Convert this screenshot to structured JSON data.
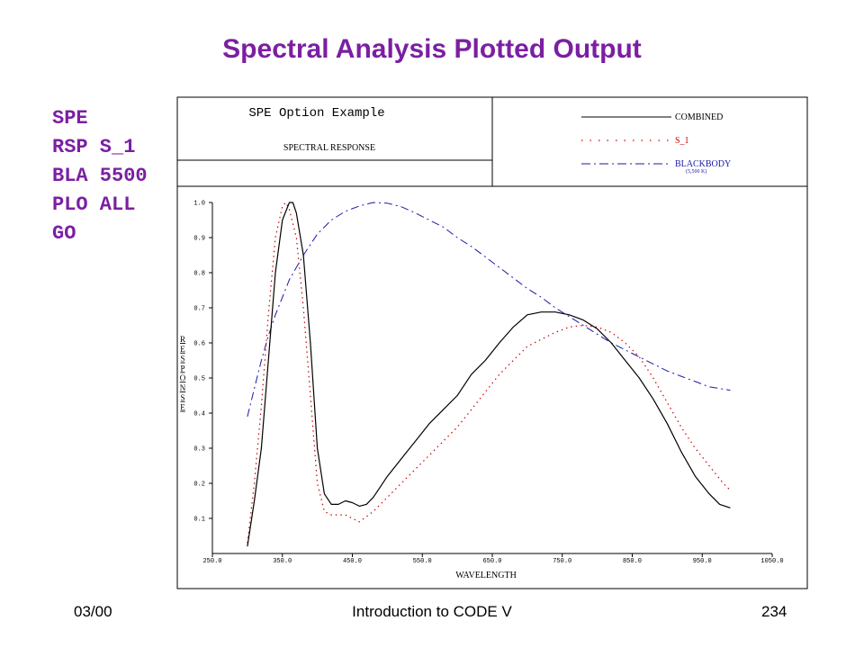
{
  "slide": {
    "title": "Spectral Analysis Plotted Output",
    "commands": [
      "SPE",
      "RSP S_1",
      "BLA 5500",
      "PLO ALL",
      "GO"
    ],
    "footer_left": "03/00",
    "footer_center": "Introduction to CODE V",
    "footer_right": "234"
  },
  "colors": {
    "title": "#7b1fa2",
    "combined": "#000000",
    "s1": "#cc0000",
    "blackbody": "#1a1aaa"
  },
  "chart_data": {
    "type": "line",
    "header_title": "SPE Option Example",
    "header_subtitle": "SPECTRAL RESPONSE",
    "xlabel": "WAVELENGTH",
    "ylabel": "RESPONSE",
    "xlim": [
      250,
      1050
    ],
    "ylim": [
      0,
      1.0
    ],
    "x_ticks": [
      250,
      350,
      450,
      550,
      650,
      750,
      850,
      950,
      1050
    ],
    "x_tick_labels": [
      "250.0",
      "350.0",
      "450.0",
      "550.0",
      "650.0",
      "750.0",
      "850.0",
      "950.0",
      "1050.0"
    ],
    "y_ticks": [
      0.1,
      0.2,
      0.3,
      0.4,
      0.5,
      0.6,
      0.7,
      0.8,
      0.9,
      1.0
    ],
    "y_tick_labels": [
      "0.1",
      "0.2",
      "0.3",
      "0.4",
      "0.5",
      "0.6",
      "0.7",
      "0.8",
      "0.9",
      "1.0"
    ],
    "grid": false,
    "legend_position": "top-right",
    "series": [
      {
        "name": "COMBINED",
        "style": "solid",
        "points": [
          [
            300,
            0.02
          ],
          [
            310,
            0.15
          ],
          [
            320,
            0.3
          ],
          [
            330,
            0.55
          ],
          [
            340,
            0.8
          ],
          [
            350,
            0.95
          ],
          [
            360,
            1.0
          ],
          [
            365,
            1.0
          ],
          [
            370,
            0.97
          ],
          [
            380,
            0.85
          ],
          [
            390,
            0.6
          ],
          [
            400,
            0.3
          ],
          [
            410,
            0.17
          ],
          [
            420,
            0.14
          ],
          [
            430,
            0.14
          ],
          [
            440,
            0.15
          ],
          [
            450,
            0.145
          ],
          [
            460,
            0.135
          ],
          [
            470,
            0.14
          ],
          [
            480,
            0.16
          ],
          [
            490,
            0.19
          ],
          [
            500,
            0.22
          ],
          [
            520,
            0.27
          ],
          [
            540,
            0.32
          ],
          [
            560,
            0.37
          ],
          [
            580,
            0.41
          ],
          [
            600,
            0.45
          ],
          [
            620,
            0.51
          ],
          [
            640,
            0.55
          ],
          [
            660,
            0.6
          ],
          [
            680,
            0.645
          ],
          [
            700,
            0.68
          ],
          [
            720,
            0.688
          ],
          [
            740,
            0.688
          ],
          [
            760,
            0.68
          ],
          [
            780,
            0.665
          ],
          [
            800,
            0.64
          ],
          [
            820,
            0.6
          ],
          [
            840,
            0.55
          ],
          [
            860,
            0.5
          ],
          [
            880,
            0.44
          ],
          [
            900,
            0.37
          ],
          [
            920,
            0.29
          ],
          [
            940,
            0.22
          ],
          [
            960,
            0.17
          ],
          [
            975,
            0.14
          ],
          [
            990,
            0.13
          ]
        ]
      },
      {
        "name": "S_1",
        "style": "dotted",
        "points": [
          [
            300,
            0.03
          ],
          [
            310,
            0.2
          ],
          [
            320,
            0.42
          ],
          [
            330,
            0.68
          ],
          [
            340,
            0.9
          ],
          [
            350,
            0.99
          ],
          [
            355,
            1.0
          ],
          [
            360,
            0.98
          ],
          [
            370,
            0.9
          ],
          [
            380,
            0.7
          ],
          [
            390,
            0.45
          ],
          [
            400,
            0.2
          ],
          [
            410,
            0.12
          ],
          [
            420,
            0.11
          ],
          [
            440,
            0.11
          ],
          [
            460,
            0.09
          ],
          [
            480,
            0.12
          ],
          [
            500,
            0.16
          ],
          [
            520,
            0.2
          ],
          [
            540,
            0.24
          ],
          [
            560,
            0.28
          ],
          [
            580,
            0.32
          ],
          [
            600,
            0.36
          ],
          [
            620,
            0.41
          ],
          [
            640,
            0.46
          ],
          [
            660,
            0.51
          ],
          [
            680,
            0.55
          ],
          [
            700,
            0.59
          ],
          [
            720,
            0.61
          ],
          [
            740,
            0.63
          ],
          [
            760,
            0.645
          ],
          [
            780,
            0.65
          ],
          [
            800,
            0.645
          ],
          [
            820,
            0.63
          ],
          [
            840,
            0.6
          ],
          [
            860,
            0.56
          ],
          [
            880,
            0.5
          ],
          [
            900,
            0.43
          ],
          [
            920,
            0.36
          ],
          [
            940,
            0.3
          ],
          [
            960,
            0.25
          ],
          [
            980,
            0.2
          ],
          [
            990,
            0.18
          ]
        ]
      },
      {
        "name": "BLACKBODY",
        "legend_note": "(5,500 K)",
        "style": "dash-dot",
        "points": [
          [
            300,
            0.39
          ],
          [
            310,
            0.47
          ],
          [
            320,
            0.55
          ],
          [
            330,
            0.62
          ],
          [
            340,
            0.68
          ],
          [
            350,
            0.73
          ],
          [
            360,
            0.78
          ],
          [
            380,
            0.85
          ],
          [
            400,
            0.91
          ],
          [
            420,
            0.95
          ],
          [
            440,
            0.975
          ],
          [
            460,
            0.99
          ],
          [
            480,
            1.0
          ],
          [
            500,
            0.998
          ],
          [
            520,
            0.988
          ],
          [
            540,
            0.97
          ],
          [
            560,
            0.95
          ],
          [
            580,
            0.93
          ],
          [
            600,
            0.9
          ],
          [
            620,
            0.875
          ],
          [
            640,
            0.845
          ],
          [
            660,
            0.815
          ],
          [
            680,
            0.785
          ],
          [
            700,
            0.755
          ],
          [
            720,
            0.73
          ],
          [
            740,
            0.7
          ],
          [
            760,
            0.675
          ],
          [
            780,
            0.65
          ],
          [
            800,
            0.625
          ],
          [
            820,
            0.6
          ],
          [
            840,
            0.58
          ],
          [
            860,
            0.56
          ],
          [
            880,
            0.54
          ],
          [
            900,
            0.52
          ],
          [
            920,
            0.505
          ],
          [
            940,
            0.49
          ],
          [
            960,
            0.475
          ],
          [
            990,
            0.465
          ]
        ]
      }
    ]
  }
}
